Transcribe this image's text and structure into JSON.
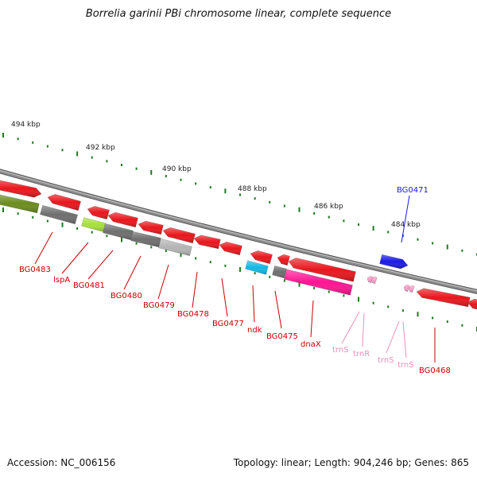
{
  "title": "Borrelia garinii PBi chromosome linear, complete sequence",
  "footer": {
    "accession": "Accession: NC_006156",
    "summary": "Topology: linear; Length: 904,246 bp; Genes: 865"
  },
  "colors": {
    "backbone": "#8c8c8c",
    "tick": "#1f7a1f",
    "gene_red": "#e8161c",
    "gene_grey": "#6e6e6e",
    "gene_lightgrey": "#b4b4b4",
    "gene_olive": "#6b8c1e",
    "gene_lime": "#a6e03a",
    "gene_cyan": "#14b8e6",
    "gene_magenta": "#ff1493",
    "gene_blue": "#1a1ae6",
    "trna_pink": "#ff9ec8",
    "label_red": "#c80000",
    "label_pink": "#e890b8",
    "label_blue": "#1a1ae6"
  },
  "scale_labels": [
    {
      "text": "494 kbp"
    },
    {
      "text": "492 kbp"
    },
    {
      "text": "490 kbp"
    },
    {
      "text": "488 kbp"
    },
    {
      "text": "486 kbp"
    },
    {
      "text": "484 kbp"
    }
  ],
  "gene_labels": [
    {
      "text": "BG0483",
      "color": "label_red"
    },
    {
      "text": "lspA",
      "color": "label_red"
    },
    {
      "text": "BG0481",
      "color": "label_red"
    },
    {
      "text": "BG0480",
      "color": "label_red"
    },
    {
      "text": "BG0479",
      "color": "label_red"
    },
    {
      "text": "BG0478",
      "color": "label_red"
    },
    {
      "text": "BG0477",
      "color": "label_red"
    },
    {
      "text": "ndk",
      "color": "label_red"
    },
    {
      "text": "BG0475",
      "color": "label_red"
    },
    {
      "text": "dnaX",
      "color": "label_red"
    },
    {
      "text": "trnS",
      "color": "label_pink"
    },
    {
      "text": "trnR",
      "color": "label_pink"
    },
    {
      "text": "trnS",
      "color": "label_pink"
    },
    {
      "text": "trnS",
      "color": "label_pink"
    },
    {
      "text": "BG0468",
      "color": "label_red"
    },
    {
      "text": "BG0471",
      "color": "label_blue"
    }
  ]
}
